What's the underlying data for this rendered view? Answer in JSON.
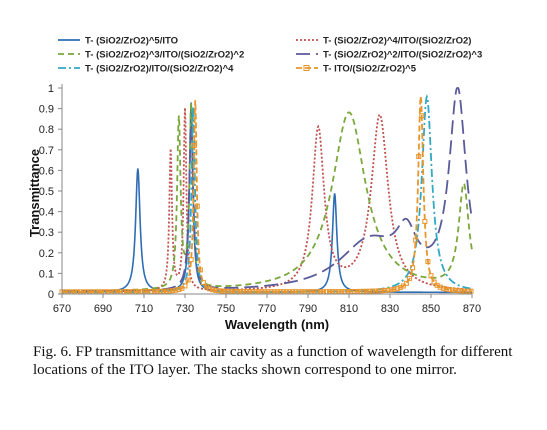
{
  "chart_data": {
    "type": "line",
    "xlabel": "Wavelength (nm)",
    "ylabel": "Transmittance",
    "xlim": [
      670,
      870
    ],
    "ylim": [
      0,
      1
    ],
    "x_ticks": [
      670,
      690,
      710,
      730,
      750,
      770,
      790,
      810,
      830,
      850,
      870
    ],
    "y_ticks": [
      0,
      0.1,
      0.2,
      0.3,
      0.4,
      0.5,
      0.6,
      0.7,
      0.8,
      0.9,
      1
    ],
    "grid": false,
    "legend_position": "top",
    "series": [
      {
        "name": "T- (SiO2/ZrO2)^5/ITO",
        "color": "#2e6db4",
        "dash": "solid",
        "marker": "none",
        "peaks": [
          {
            "x": 707,
            "y": 0.6,
            "w": 1.3
          },
          {
            "x": 733,
            "y": 0.92,
            "w": 1.0
          },
          {
            "x": 803,
            "y": 0.48,
            "w": 1.3
          }
        ],
        "baseline": 0.008
      },
      {
        "name": "T- (SiO2/ZrO2)^4/ITO/(SiO2/ZrO2)",
        "color": "#c0504d",
        "dash": "2,2",
        "marker": "none",
        "peaks": [
          {
            "x": 723,
            "y": 0.68,
            "w": 0.8
          },
          {
            "x": 730,
            "y": 0.88,
            "w": 0.8
          },
          {
            "x": 795,
            "y": 0.78,
            "w": 3.5
          },
          {
            "x": 825,
            "y": 0.85,
            "w": 5.0
          }
        ],
        "baseline": 0.01
      },
      {
        "name": "T- (SiO2/ZrO2)^3/ITO/(SiO2/ZrO2)^2",
        "color": "#7aa83c",
        "dash": "6,4",
        "marker": "none",
        "peaks": [
          {
            "x": 727,
            "y": 0.82,
            "w": 1.0
          },
          {
            "x": 733,
            "y": 0.88,
            "w": 1.0
          },
          {
            "x": 810,
            "y": 0.87,
            "w": 10.0
          },
          {
            "x": 866,
            "y": 0.5,
            "w": 3.0
          }
        ],
        "baseline": 0.01
      },
      {
        "name": "T- (SiO2/ZrO2)^2/ITO/(SiO2/ZrO2)^3",
        "color": "#5b5b9a",
        "dash": "14,6",
        "marker": "none",
        "peaks": [
          {
            "x": 733,
            "y": 0.8,
            "w": 1.2
          },
          {
            "x": 820,
            "y": 0.24,
            "w": 18.0
          },
          {
            "x": 838,
            "y": 0.2,
            "w": 6.0
          },
          {
            "x": 863,
            "y": 0.95,
            "w": 5.0
          }
        ],
        "baseline": 0.008
      },
      {
        "name": "T- (SiO2/ZrO2)/ITO/(SiO2/ZrO2)^4",
        "color": "#31a8c4",
        "dash": "8,3,2,3",
        "marker": "none",
        "peaks": [
          {
            "x": 734,
            "y": 0.9,
            "w": 1.0
          },
          {
            "x": 848,
            "y": 0.95,
            "w": 3.0
          }
        ],
        "baseline": 0.008
      },
      {
        "name": "T- ITO/(SiO2/ZrO2)^5",
        "color": "#e8952b",
        "dash": "6,3",
        "marker": "square",
        "peaks": [
          {
            "x": 735,
            "y": 0.93,
            "w": 0.9
          },
          {
            "x": 845,
            "y": 0.95,
            "w": 1.5
          }
        ],
        "baseline": 0.01
      }
    ]
  },
  "caption": "Fig. 6.   FP transmittance with air cavity as a function of wavelength for different locations of the ITO layer. The stacks shown correspond to one mirror."
}
